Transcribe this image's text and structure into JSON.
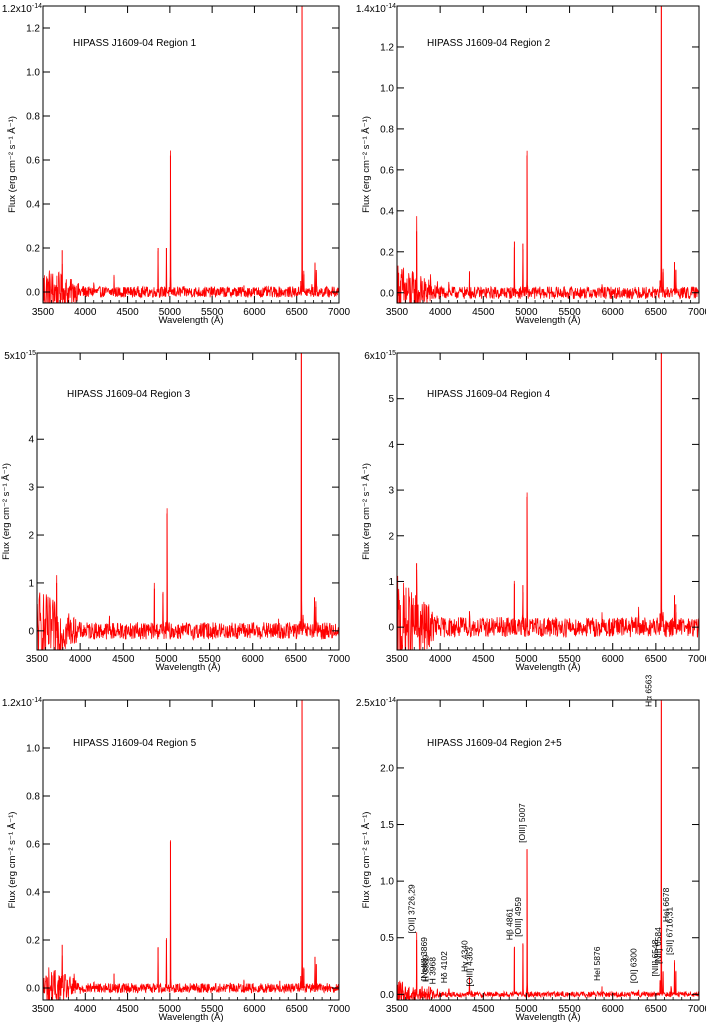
{
  "chart_data": [
    {
      "type": "line",
      "title": "HIPASS J1609-04 Region 1",
      "xlabel": "Wavelength (Å)",
      "ylabel": "Flux (erg cm⁻² s⁻¹ Å⁻¹)",
      "xlim": [
        3500,
        7000
      ],
      "ylim": [
        -0.05,
        1.3
      ],
      "y_multiplier": "10⁻¹⁴",
      "x_ticks": [
        "3500",
        "4000",
        "4500",
        "5000",
        "5500",
        "6000",
        "6500",
        "7000"
      ],
      "y_ticks": [
        "0.0",
        "0.2",
        "0.4",
        "0.6",
        "0.8",
        "1.0",
        "1.2"
      ],
      "y_tick_values": [
        0,
        0.2,
        0.4,
        0.6,
        0.8,
        1.0,
        1.2
      ],
      "top_tick_label": "1.2x10",
      "noise_level": 0.025,
      "lines": [
        {
          "x": 3727,
          "y": 0.19
        },
        {
          "x": 3869,
          "y": 0.02
        },
        {
          "x": 3889,
          "y": 0.02
        },
        {
          "x": 3968,
          "y": 0.02
        },
        {
          "x": 4102,
          "y": 0.03
        },
        {
          "x": 4340,
          "y": 0.07
        },
        {
          "x": 4861,
          "y": 0.2
        },
        {
          "x": 4959,
          "y": 0.2
        },
        {
          "x": 5007,
          "y": 0.62
        },
        {
          "x": 5876,
          "y": 0.03
        },
        {
          "x": 6300,
          "y": 0.02
        },
        {
          "x": 6548,
          "y": 0.05
        },
        {
          "x": 6563,
          "y": 1.3
        },
        {
          "x": 6584,
          "y": 0.08
        },
        {
          "x": 6678,
          "y": 0.02
        },
        {
          "x": 6716,
          "y": 0.13
        },
        {
          "x": 6731,
          "y": 0.1
        }
      ]
    },
    {
      "type": "line",
      "title": "HIPASS J1609-04 Region 2",
      "xlabel": "Wavelength (Å)",
      "ylabel": "Flux (erg cm⁻² s⁻¹ Å⁻¹)",
      "xlim": [
        3500,
        7000
      ],
      "ylim": [
        -0.05,
        1.4
      ],
      "y_multiplier": "10⁻¹⁴",
      "x_ticks": [
        "3500",
        "4000",
        "4500",
        "5000",
        "5500",
        "6000",
        "6500",
        "7000"
      ],
      "y_ticks": [
        "0.0",
        "0.2",
        "0.4",
        "0.6",
        "0.8",
        "1.0",
        "1.2"
      ],
      "y_tick_values": [
        0,
        0.2,
        0.4,
        0.6,
        0.8,
        1.0,
        1.2
      ],
      "top_tick_label": "1.4x10",
      "noise_level": 0.03,
      "lines": [
        {
          "x": 3727,
          "y": 0.3
        },
        {
          "x": 3869,
          "y": 0.04
        },
        {
          "x": 3889,
          "y": 0.04
        },
        {
          "x": 3968,
          "y": 0.03
        },
        {
          "x": 4102,
          "y": 0.04
        },
        {
          "x": 4340,
          "y": 0.1
        },
        {
          "x": 4861,
          "y": 0.25
        },
        {
          "x": 4959,
          "y": 0.24
        },
        {
          "x": 5007,
          "y": 0.67
        },
        {
          "x": 5876,
          "y": 0.03
        },
        {
          "x": 6300,
          "y": 0.02
        },
        {
          "x": 6548,
          "y": 0.06
        },
        {
          "x": 6563,
          "y": 1.4
        },
        {
          "x": 6584,
          "y": 0.1
        },
        {
          "x": 6678,
          "y": 0.02
        },
        {
          "x": 6716,
          "y": 0.15
        },
        {
          "x": 6731,
          "y": 0.11
        }
      ]
    },
    {
      "type": "line",
      "title": "HIPASS J1609-04 Region 3",
      "xlabel": "Wavelength (Å)",
      "ylabel": "Flux (erg cm⁻² s⁻¹ Å⁻¹)",
      "xlim": [
        3500,
        7000
      ],
      "ylim": [
        -0.4,
        5.8
      ],
      "y_multiplier": "10⁻¹⁵",
      "x_ticks": [
        "3500",
        "4000",
        "4500",
        "5000",
        "5500",
        "6000",
        "6500",
        "7000"
      ],
      "y_ticks": [
        "0",
        "1",
        "2",
        "3",
        "4"
      ],
      "y_tick_values": [
        0,
        1,
        2,
        3,
        4
      ],
      "top_tick_label": "5x10",
      "noise_level": 0.18,
      "lines": [
        {
          "x": 3727,
          "y": 1.0
        },
        {
          "x": 3869,
          "y": 0.15
        },
        {
          "x": 4340,
          "y": 0.3
        },
        {
          "x": 4861,
          "y": 0.88
        },
        {
          "x": 4959,
          "y": 0.78
        },
        {
          "x": 5007,
          "y": 2.45
        },
        {
          "x": 5876,
          "y": 0.15
        },
        {
          "x": 6300,
          "y": 0.15
        },
        {
          "x": 6548,
          "y": 0.2
        },
        {
          "x": 6563,
          "y": 5.8
        },
        {
          "x": 6584,
          "y": 0.25
        },
        {
          "x": 6716,
          "y": 0.7
        },
        {
          "x": 6731,
          "y": 0.5
        }
      ]
    },
    {
      "type": "line",
      "title": "HIPASS J1609-04 Region 4",
      "xlabel": "Wavelength (Å)",
      "ylabel": "Flux (erg cm⁻² s⁻¹ Å⁻¹)",
      "xlim": [
        3500,
        7000
      ],
      "ylim": [
        -0.5,
        6.0
      ],
      "y_multiplier": "10⁻¹⁵",
      "x_ticks": [
        "3500",
        "4000",
        "4500",
        "5000",
        "5500",
        "6000",
        "6500",
        "7000"
      ],
      "y_ticks": [
        "0",
        "1",
        "2",
        "3",
        "4",
        "5"
      ],
      "y_tick_values": [
        0,
        1,
        2,
        3,
        4,
        5
      ],
      "top_tick_label": "6x10",
      "noise_level": 0.22,
      "lines": [
        {
          "x": 3727,
          "y": 1.4
        },
        {
          "x": 3869,
          "y": 0.15
        },
        {
          "x": 4340,
          "y": 0.35
        },
        {
          "x": 4861,
          "y": 0.95
        },
        {
          "x": 4959,
          "y": 0.92
        },
        {
          "x": 5007,
          "y": 2.85
        },
        {
          "x": 5876,
          "y": 0.12
        },
        {
          "x": 6300,
          "y": 0.25
        },
        {
          "x": 6548,
          "y": 0.3
        },
        {
          "x": 6563,
          "y": 6.0
        },
        {
          "x": 6584,
          "y": 0.25
        },
        {
          "x": 6716,
          "y": 0.7
        },
        {
          "x": 6731,
          "y": 0.5
        }
      ]
    },
    {
      "type": "line",
      "title": "HIPASS J1609-04 Region 5",
      "xlabel": "Wavelength (Å)",
      "ylabel": "Flux (erg cm⁻² s⁻¹ Å⁻¹)",
      "xlim": [
        3500,
        7000
      ],
      "ylim": [
        -0.05,
        1.2
      ],
      "y_multiplier": "10⁻¹⁴",
      "x_ticks": [
        "3500",
        "4000",
        "4500",
        "5000",
        "5500",
        "6000",
        "6500",
        "7000"
      ],
      "y_ticks": [
        "0.0",
        "0.2",
        "0.4",
        "0.6",
        "0.8",
        "1.0"
      ],
      "y_tick_values": [
        0,
        0.2,
        0.4,
        0.6,
        0.8,
        1.0
      ],
      "top_tick_label": "1.2x10",
      "noise_level": 0.02,
      "lines": [
        {
          "x": 3727,
          "y": 0.18
        },
        {
          "x": 3869,
          "y": 0.02
        },
        {
          "x": 3889,
          "y": 0.02
        },
        {
          "x": 4102,
          "y": 0.02
        },
        {
          "x": 4340,
          "y": 0.06
        },
        {
          "x": 4861,
          "y": 0.17
        },
        {
          "x": 4959,
          "y": 0.2
        },
        {
          "x": 5007,
          "y": 0.61
        },
        {
          "x": 5876,
          "y": 0.03
        },
        {
          "x": 6300,
          "y": 0.03
        },
        {
          "x": 6548,
          "y": 0.05
        },
        {
          "x": 6563,
          "y": 1.2
        },
        {
          "x": 6584,
          "y": 0.08
        },
        {
          "x": 6716,
          "y": 0.13
        },
        {
          "x": 6731,
          "y": 0.1
        }
      ]
    },
    {
      "type": "line",
      "title": "HIPASS J1609-04 Region 2+5",
      "xlabel": "Wavelength (Å)",
      "ylabel": "Flux (erg cm⁻² s⁻¹ Å⁻¹)",
      "xlim": [
        3500,
        7000
      ],
      "ylim": [
        -0.05,
        2.6
      ],
      "y_multiplier": "10⁻¹⁴",
      "x_ticks": [
        "3500",
        "4000",
        "4500",
        "5000",
        "5500",
        "6000",
        "6500",
        "7000"
      ],
      "y_ticks": [
        "0.0",
        "0.5",
        "1.0",
        "1.5",
        "2.0"
      ],
      "y_tick_values": [
        0,
        0.5,
        1.0,
        1.5,
        2.0
      ],
      "top_tick_label": "2.5x10",
      "noise_level": 0.025,
      "lines": [
        {
          "x": 3727,
          "y": 0.48
        },
        {
          "x": 3869,
          "y": 0.07
        },
        {
          "x": 3889,
          "y": 0.06
        },
        {
          "x": 3968,
          "y": 0.04
        },
        {
          "x": 4102,
          "y": 0.05
        },
        {
          "x": 4340,
          "y": 0.15
        },
        {
          "x": 4363,
          "y": 0.02
        },
        {
          "x": 4861,
          "y": 0.42
        },
        {
          "x": 4959,
          "y": 0.45
        },
        {
          "x": 5007,
          "y": 1.28
        },
        {
          "x": 5876,
          "y": 0.07
        },
        {
          "x": 6300,
          "y": 0.04
        },
        {
          "x": 6548,
          "y": 0.1
        },
        {
          "x": 6563,
          "y": 2.6
        },
        {
          "x": 6584,
          "y": 0.2
        },
        {
          "x": 6678,
          "y": 0.05
        },
        {
          "x": 6716,
          "y": 0.28
        },
        {
          "x": 6731,
          "y": 0.2
        }
      ],
      "annotations": [
        {
          "text": "[OII] 3726,29",
          "x": 3727,
          "y": 0.52
        },
        {
          "text": "[NeIII] 3869",
          "x": 3869,
          "y": 0.1
        },
        {
          "text": "H 3889",
          "x": 3889,
          "y": 0.09
        },
        {
          "text": "H 3968",
          "x": 3968,
          "y": 0.07
        },
        {
          "text": "Hδ 4102",
          "x": 4102,
          "y": 0.08
        },
        {
          "text": "Hγ 4340",
          "x": 4340,
          "y": 0.18
        },
        {
          "text": "[OIII] 4363",
          "x": 4400,
          "y": 0.05
        },
        {
          "text": "Hβ 4861",
          "x": 4861,
          "y": 0.46
        },
        {
          "text": "[OIII] 4959",
          "x": 4959,
          "y": 0.49
        },
        {
          "text": "[OIII] 5007",
          "x": 5007,
          "y": 1.32
        },
        {
          "text": "HeI 5876",
          "x": 5876,
          "y": 0.1
        },
        {
          "text": "[OI] 6300",
          "x": 6300,
          "y": 0.08
        },
        {
          "text": "[NII] 6548",
          "x": 6548,
          "y": 0.14
        },
        {
          "text": "Hα 6563",
          "x": 6470,
          "y": 2.52
        },
        {
          "text": "[NII] 6584",
          "x": 6584,
          "y": 0.25
        },
        {
          "text": "HeI 6678",
          "x": 6678,
          "y": 0.62
        },
        {
          "text": "[SII] 6716,31",
          "x": 6716,
          "y": 0.33
        }
      ]
    }
  ]
}
